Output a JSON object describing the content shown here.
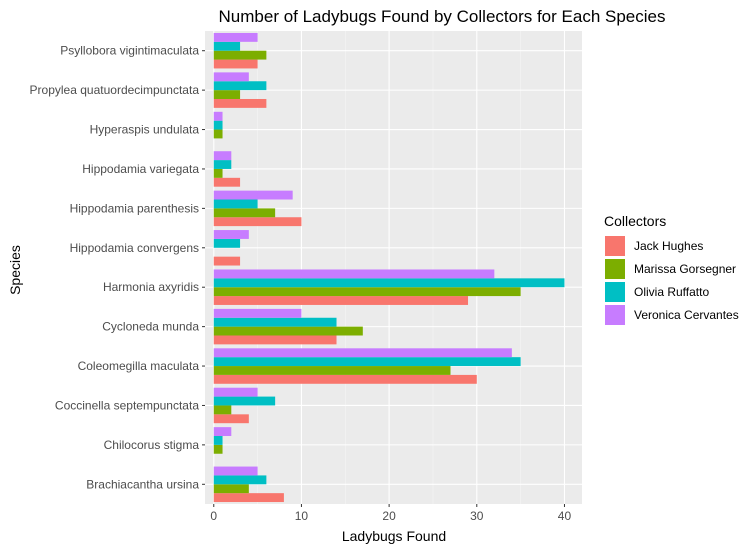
{
  "chart_data": {
    "type": "bar",
    "orientation": "horizontal",
    "title": "Number of Ladybugs Found by Collectors for Each Species",
    "xlabel": "Ladybugs Found",
    "ylabel": "Species",
    "xlim": [
      -1,
      42
    ],
    "xticks": [
      0,
      10,
      20,
      30,
      40
    ],
    "grid": true,
    "legend_placement": "right",
    "legend_title": "Collectors",
    "categories": [
      "Brachiacantha ursina",
      "Chilocorus stigma",
      "Coccinella septempunctata",
      "Coleomegilla maculata",
      "Cycloneda munda",
      "Harmonia axyridis",
      "Hippodamia convergens",
      "Hippodamia parenthesis",
      "Hippodamia variegata",
      "Hyperaspis undulata",
      "Propylea quatuordecimpunctata",
      "Psyllobora vigintimaculata"
    ],
    "series": [
      {
        "name": "Jack Hughes",
        "color": "#F8766D",
        "values": [
          8,
          0,
          4,
          30,
          14,
          29,
          3,
          10,
          3,
          0,
          6,
          5
        ]
      },
      {
        "name": "Marissa Gorsegner",
        "color": "#7CAE00",
        "values": [
          4,
          1,
          2,
          27,
          17,
          35,
          0,
          7,
          1,
          1,
          3,
          6
        ]
      },
      {
        "name": "Olivia Ruffatto",
        "color": "#00BFC4",
        "values": [
          6,
          1,
          7,
          35,
          14,
          40,
          3,
          5,
          2,
          1,
          6,
          3
        ]
      },
      {
        "name": "Veronica Cervantes",
        "color": "#C77CFF",
        "values": [
          5,
          2,
          5,
          34,
          10,
          32,
          4,
          9,
          2,
          1,
          4,
          5
        ]
      }
    ]
  }
}
